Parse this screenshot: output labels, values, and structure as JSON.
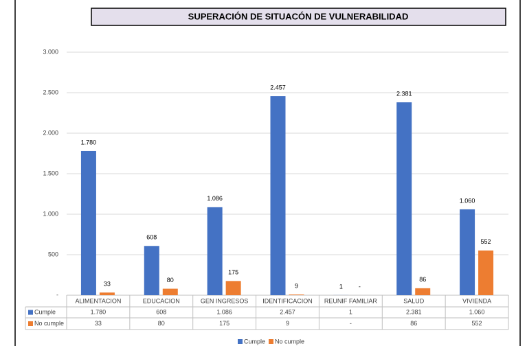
{
  "chart_data": {
    "type": "bar",
    "title": "SUPERACIÓN DE SITUACÓN DE VULNERABILIDAD",
    "categories": [
      "ALIMENTACION",
      "EDUCACION",
      "GEN INGRESOS",
      "IDENTIFICACION",
      "REUNIF FAMILIAR",
      "SALUD",
      "VIVIENDA"
    ],
    "series": [
      {
        "name": "Cumple",
        "color": "#4472c4",
        "values": [
          1780,
          608,
          1086,
          2457,
          1,
          2381,
          1060
        ],
        "value_labels": [
          "1.780",
          "608",
          "1.086",
          "2.457",
          "1",
          "2.381",
          "1.060"
        ]
      },
      {
        "name": "No cumple",
        "color": "#ed7d31",
        "values": [
          33,
          80,
          175,
          9,
          0,
          86,
          552
        ],
        "value_labels": [
          "33",
          "80",
          "175",
          "9",
          "-",
          "86",
          "552"
        ]
      }
    ],
    "ylim": [
      0,
      3000
    ],
    "yticks": [
      {
        "value": 0,
        "label": "-"
      },
      500,
      {
        "value": 1000,
        "label": "1.000"
      },
      {
        "value": 1500,
        "label": "1.500"
      },
      {
        "value": 2000,
        "label": "2.000"
      },
      {
        "value": 2500,
        "label": "2.500"
      },
      {
        "value": 3000,
        "label": "3.000"
      }
    ],
    "grid": true
  }
}
